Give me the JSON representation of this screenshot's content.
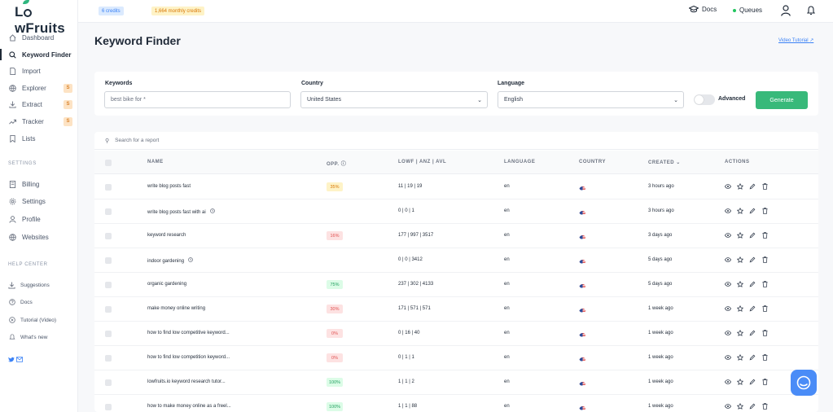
{
  "brand": {
    "name_a": "L",
    "name_b": "wFruits",
    "accent": "#2fb67f"
  },
  "topbar": {
    "credits": "6 credits",
    "monthly_credits": "1,664 monthly credits",
    "docs_label": "Docs",
    "queues_label": "Queues"
  },
  "sidebar": {
    "items": [
      {
        "label": "Dashboard",
        "icon": "home-icon"
      },
      {
        "label": "Keyword Finder",
        "icon": "search-icon",
        "active": true
      },
      {
        "label": "Import",
        "icon": "file-icon"
      },
      {
        "label": "Explorer",
        "icon": "globe-icon",
        "badge": "S"
      },
      {
        "label": "Extract",
        "icon": "download-icon",
        "badge": "S"
      },
      {
        "label": "Tracker",
        "icon": "trending-icon",
        "badge": "S"
      },
      {
        "label": "Lists",
        "icon": "bookmark-icon"
      }
    ],
    "settings_title": "SETTINGS",
    "settings_items": [
      {
        "label": "Billing",
        "icon": "billing-icon"
      },
      {
        "label": "Settings",
        "icon": "gear-icon"
      },
      {
        "label": "Profile",
        "icon": "user-icon"
      },
      {
        "label": "Websites",
        "icon": "globe-icon"
      }
    ],
    "help_title": "HELP CENTER",
    "help_items": [
      {
        "label": "Suggestions",
        "icon": "download-icon"
      },
      {
        "label": "Docs",
        "icon": "help-icon"
      },
      {
        "label": "Tutorial (Video)",
        "icon": "play-icon"
      },
      {
        "label": "What's new",
        "icon": "bell-icon"
      }
    ]
  },
  "main": {
    "title": "Keyword Finder",
    "video_link": "Video Tutorial"
  },
  "form": {
    "keywords_label": "Keywords",
    "keywords_placeholder": "best bike for *",
    "country_label": "Country",
    "country_value": "United States",
    "language_label": "Language",
    "language_value": "English",
    "advanced_label": "Advanced",
    "generate_label": "Generate"
  },
  "table": {
    "search_placeholder": "Search for a report",
    "headers": {
      "name": "NAME",
      "opp": "OPP.",
      "metrics": "LOWF | ANZ | AVL",
      "language": "LANGUAGE",
      "country": "COUNTRY",
      "created": "CREATED",
      "actions": "ACTIONS"
    },
    "rows": [
      {
        "name": "write blog posts fast",
        "pending": false,
        "opp": "35%",
        "opp_level": "y",
        "metrics": "11 | 19 | 19",
        "language": "en",
        "created": "3 hours ago"
      },
      {
        "name": "write blog posts fast with ai",
        "pending": true,
        "opp": "",
        "opp_level": "",
        "metrics": "0 | 0 | 1",
        "language": "en",
        "created": "3 hours ago"
      },
      {
        "name": "keyword research",
        "pending": false,
        "opp": "16%",
        "opp_level": "r",
        "metrics": "177 | 997 | 3517",
        "language": "en",
        "created": "3 days ago"
      },
      {
        "name": "indoor gardening",
        "pending": true,
        "opp": "",
        "opp_level": "",
        "metrics": "0 | 0 | 3412",
        "language": "en",
        "created": "5 days ago"
      },
      {
        "name": "organic gardening",
        "pending": false,
        "opp": "75%",
        "opp_level": "g",
        "metrics": "237 | 302 | 4133",
        "language": "en",
        "created": "5 days ago"
      },
      {
        "name": "make money online writing",
        "pending": false,
        "opp": "30%",
        "opp_level": "r",
        "metrics": "171 | 571 | 571",
        "language": "en",
        "created": "1 week ago"
      },
      {
        "name": "how to find low competitive keyword...",
        "pending": false,
        "opp": "0%",
        "opp_level": "r",
        "metrics": "0 | 16 | 40",
        "language": "en",
        "created": "1 week ago"
      },
      {
        "name": "how to find low competition keyword...",
        "pending": false,
        "opp": "0%",
        "opp_level": "r",
        "metrics": "0 | 1 | 1",
        "language": "en",
        "created": "1 week ago"
      },
      {
        "name": "lowfruits.io keyword research tutor...",
        "pending": false,
        "opp": "100%",
        "opp_level": "g",
        "metrics": "1 | 1 | 2",
        "language": "en",
        "created": "1 week ago"
      },
      {
        "name": "how to make money online as a freel...",
        "pending": false,
        "opp": "100%",
        "opp_level": "g",
        "metrics": "1 | 1 | 88",
        "language": "en",
        "created": "1 week ago"
      }
    ]
  }
}
